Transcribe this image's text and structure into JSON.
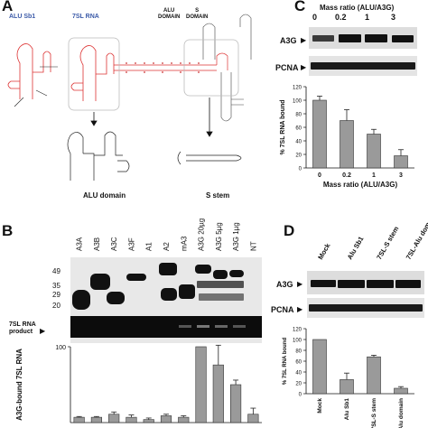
{
  "panelA": {
    "letter": "A",
    "label_alu_sb1": "ALU Sb1",
    "label_7sl": "7SL RNA",
    "label_alu_domain_top": "ALU",
    "label_alu_domain_top2": "DOMAIN",
    "label_s_domain_top": "S",
    "label_s_domain_top2": "DOMAIN",
    "label_alu_domain": "ALU domain",
    "label_s_stem": "S stem"
  },
  "panelB": {
    "letter": "B",
    "lanes": [
      "A3A",
      "A3B",
      "A3C",
      "A3F",
      "A1",
      "A2",
      "mA3",
      "A3G 20µg",
      "A3G 5µg",
      "A3G 1µg",
      "NT"
    ],
    "markers": [
      "49",
      "35",
      "29",
      "20"
    ],
    "product_label_1": "7SL RNA",
    "product_label_2": "product",
    "ylabel": "A3G-bound 7SL RNA",
    "ytick_100": "100"
  },
  "panelC": {
    "letter": "C",
    "title": "Mass ratio (ALU/A3G)",
    "ratios": [
      "0",
      "0.2",
      "1",
      "3"
    ],
    "blot1": "A3G",
    "blot2": "PCNA"
  },
  "panelD": {
    "letter": "D",
    "lanes": [
      "Mock",
      "Alu Sb1",
      "7SL-S stem",
      "7SL-Alu domain"
    ],
    "blot1": "A3G",
    "blot2": "PCNA"
  },
  "chart_data": [
    {
      "type": "bar",
      "panel": "C",
      "categories": [
        "0",
        "0.2",
        "1",
        "3"
      ],
      "values": [
        100,
        70,
        50,
        18
      ],
      "errors": [
        6,
        16,
        7,
        9
      ],
      "xlabel": "Mass ratio (ALU/A3G)",
      "ylabel": "% 7SL RNA bound",
      "ylim": [
        0,
        120
      ],
      "yticks": [
        0,
        20,
        40,
        60,
        80,
        100,
        120
      ],
      "grid": false
    },
    {
      "type": "bar",
      "panel": "D",
      "categories": [
        "Mock",
        "Alu Sb1",
        "7SL-S stem",
        "7SL-Alu domain"
      ],
      "values": [
        100,
        26,
        68,
        10
      ],
      "errors": [
        0,
        12,
        3,
        3
      ],
      "ylabel": "% 7SL RNA bound",
      "ylim": [
        0,
        120
      ],
      "yticks": [
        0,
        20,
        40,
        60,
        80,
        100,
        120
      ],
      "grid": false
    },
    {
      "type": "bar",
      "panel": "B",
      "categories": [
        "A3A",
        "A3B",
        "A3C",
        "A3F",
        "A1",
        "A2",
        "mA3",
        "A3G 20µg",
        "A3G 5µg",
        "A3G 1µg",
        "NT"
      ],
      "values": [
        7,
        7,
        11,
        7,
        4,
        9,
        7,
        100,
        76,
        50,
        11
      ],
      "errors": [
        1,
        1,
        3,
        3,
        2,
        2,
        2,
        0,
        26,
        6,
        8
      ],
      "ylabel": "A3G-bound 7SL RNA",
      "ylim": [
        0,
        100
      ],
      "grid": false
    }
  ]
}
